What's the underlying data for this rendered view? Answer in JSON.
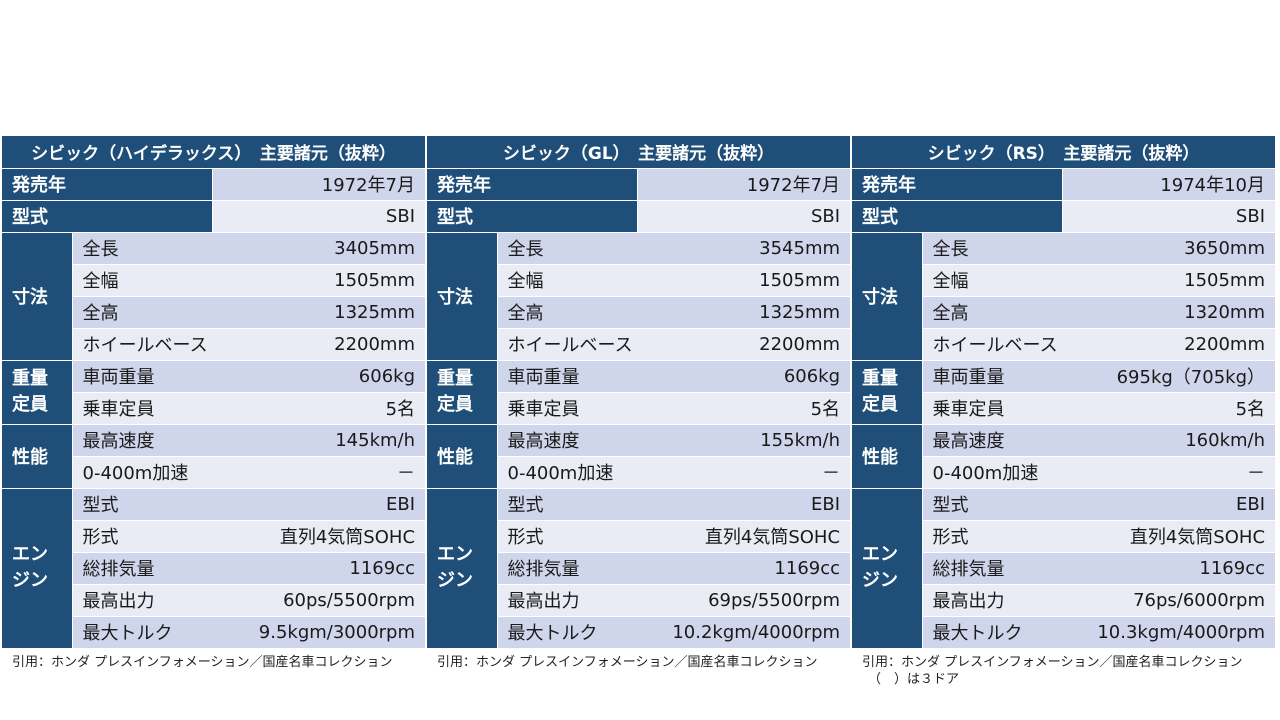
{
  "tables": [
    {
      "title": "シビック（ハイデラックス）　主要諸元（抜粋）",
      "release_label": "発売年",
      "release_value": "1972年7月",
      "model_label": "型式",
      "model_value": "SBI",
      "dim_label": "寸法",
      "length_label": "全長",
      "length_value": "3405mm",
      "width_label": "全幅",
      "width_value": "1505mm",
      "height_label": "全高",
      "height_value": "1325mm",
      "wheelbase_label": "ホイールベース",
      "wheelbase_value": "2200mm",
      "weight_cat_1": "重量",
      "weight_cat_2": "定員",
      "weight_label": "車両重量",
      "weight_value": "606kg",
      "capacity_label": "乗車定員",
      "capacity_value": "5名",
      "perf_label": "性能",
      "speed_label": "最高速度",
      "speed_value": "145km/h",
      "accel_label": "0-400m加速",
      "accel_value": "－",
      "engine_cat_1": "エン",
      "engine_cat_2": "ジン",
      "engine_model_label": "型式",
      "engine_model_value": "EBI",
      "engine_type_label": "形式",
      "engine_type_value": "直列4気筒SOHC",
      "displacement_label": "総排気量",
      "displacement_value": "1169cc",
      "power_label": "最高出力",
      "power_value": "60ps/5500rpm",
      "torque_label": "最大トルク",
      "torque_value": "9.5kgm/3000rpm",
      "citation_1": "引用：ホンダ プレスインフォメーション／国産名車コレクション",
      "citation_2": ""
    },
    {
      "title": "シビック（GL）　主要諸元（抜粋）",
      "release_label": "発売年",
      "release_value": "1972年7月",
      "model_label": "型式",
      "model_value": "SBI",
      "dim_label": "寸法",
      "length_label": "全長",
      "length_value": "3545mm",
      "width_label": "全幅",
      "width_value": "1505mm",
      "height_label": "全高",
      "height_value": "1325mm",
      "wheelbase_label": "ホイールベース",
      "wheelbase_value": "2200mm",
      "weight_cat_1": "重量",
      "weight_cat_2": "定員",
      "weight_label": "車両重量",
      "weight_value": "606kg",
      "capacity_label": "乗車定員",
      "capacity_value": "5名",
      "perf_label": "性能",
      "speed_label": "最高速度",
      "speed_value": "155km/h",
      "accel_label": "0-400m加速",
      "accel_value": "－",
      "engine_cat_1": "エン",
      "engine_cat_2": "ジン",
      "engine_model_label": "型式",
      "engine_model_value": "EBI",
      "engine_type_label": "形式",
      "engine_type_value": "直列4気筒SOHC",
      "displacement_label": "総排気量",
      "displacement_value": "1169cc",
      "power_label": "最高出力",
      "power_value": "69ps/5500rpm",
      "torque_label": "最大トルク",
      "torque_value": "10.2kgm/4000rpm",
      "citation_1": "引用：ホンダ プレスインフォメーション／国産名車コレクション",
      "citation_2": ""
    },
    {
      "title": "シビック（RS）　主要諸元（抜粋）",
      "release_label": "発売年",
      "release_value": "1974年10月",
      "model_label": "型式",
      "model_value": "SBI",
      "dim_label": "寸法",
      "length_label": "全長",
      "length_value": "3650mm",
      "width_label": "全幅",
      "width_value": "1505mm",
      "height_label": "全高",
      "height_value": "1320mm",
      "wheelbase_label": "ホイールベース",
      "wheelbase_value": "2200mm",
      "weight_cat_1": "重量",
      "weight_cat_2": "定員",
      "weight_label": "車両重量",
      "weight_value": "695kg（705kg）",
      "capacity_label": "乗車定員",
      "capacity_value": "5名",
      "perf_label": "性能",
      "speed_label": "最高速度",
      "speed_value": "160km/h",
      "accel_label": "0-400m加速",
      "accel_value": "－",
      "engine_cat_1": "エン",
      "engine_cat_2": "ジン",
      "engine_model_label": "型式",
      "engine_model_value": "EBI",
      "engine_type_label": "形式",
      "engine_type_value": "直列4気筒SOHC",
      "displacement_label": "総排気量",
      "displacement_value": "1169cc",
      "power_label": "最高出力",
      "power_value": "76ps/6000rpm",
      "torque_label": "最大トルク",
      "torque_value": "10.3kgm/4000rpm",
      "citation_1": "引用：ホンダ プレスインフォメーション／国産名車コレクション",
      "citation_2": "（　）は３ドア"
    }
  ]
}
